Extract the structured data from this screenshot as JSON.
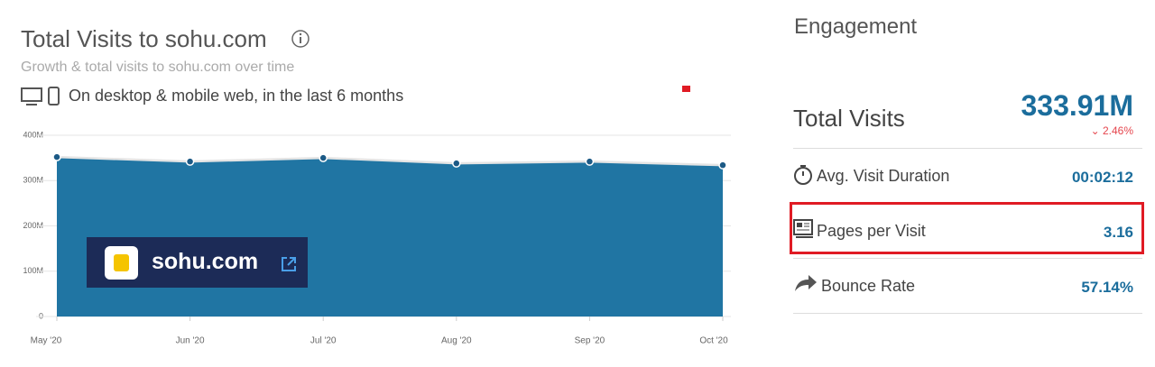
{
  "header": {
    "title": "Total Visits to sohu.com",
    "subtitle": "Growth & total visits to sohu.com over time",
    "scope": "On desktop & mobile web, in the last 6 months"
  },
  "chart_data": {
    "type": "area",
    "categories": [
      "May '20",
      "Jun '20",
      "Jul '20",
      "Aug '20",
      "Sep '20",
      "Oct '20"
    ],
    "series": [
      {
        "name": "sohu.com",
        "color": "#2075a3",
        "values": [
          352,
          342,
          350,
          338,
          342,
          334
        ]
      }
    ],
    "ylim": [
      0,
      400
    ],
    "yticks": [
      0,
      {
        "value": 100,
        "label": "100M"
      },
      {
        "value": 200,
        "label": "200M"
      },
      {
        "value": 300,
        "label": "300M"
      },
      {
        "value": 400,
        "label": "400M"
      }
    ],
    "grid": true
  },
  "engagement": {
    "title": "Engagement",
    "total": {
      "label": "Total Visits",
      "value": "333.91M",
      "change": "2.46%"
    },
    "metrics": [
      {
        "label": "Avg. Visit Duration",
        "value": "00:02:12"
      },
      {
        "label": "Pages per Visit",
        "value": "3.16"
      },
      {
        "label": "Bounce Rate",
        "value": "57.14%"
      }
    ]
  }
}
